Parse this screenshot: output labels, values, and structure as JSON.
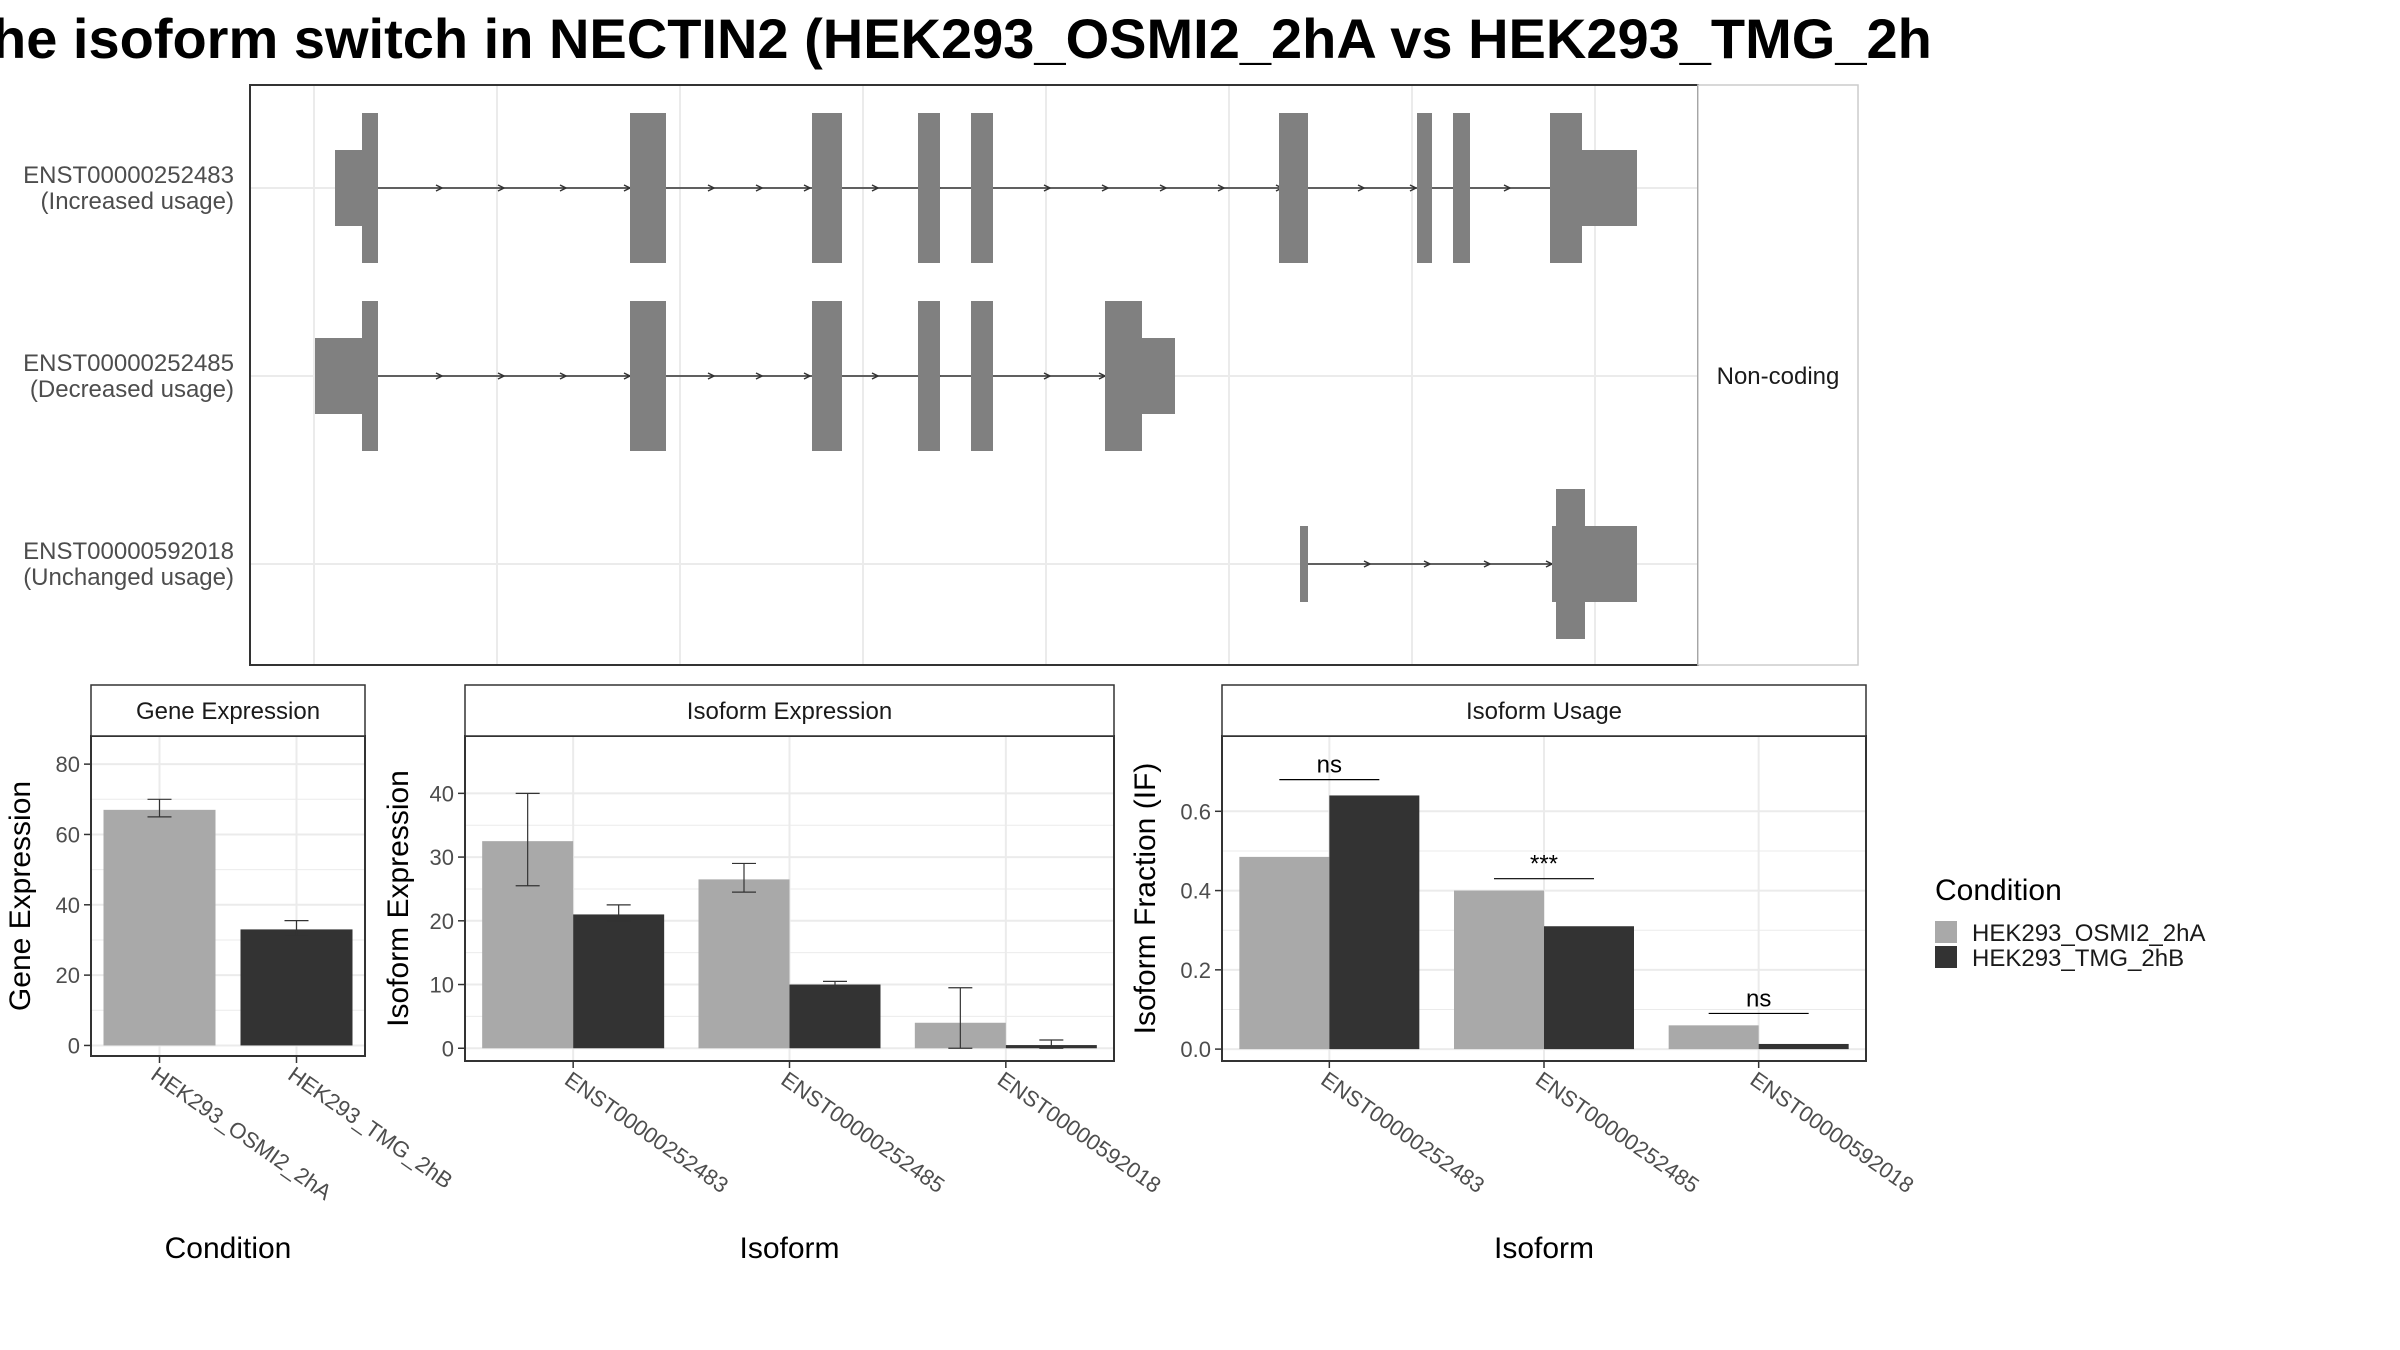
{
  "title": "he isoform switch in NECTIN2 (HEK293_OSMI2_2hA vs HEK293_TMG_2h",
  "colors": {
    "condition_a": "#a9a9a9",
    "condition_b": "#333333",
    "exon": "#808080",
    "grid": "#ebebeb"
  },
  "chart_data": [
    {
      "type": "gene-structure",
      "panel_label": "Non-coding",
      "isoforms": [
        {
          "id": "ENST00000252483",
          "usage": "(Increased usage)"
        },
        {
          "id": "ENST00000252485",
          "usage": "(Decreased usage)"
        },
        {
          "id": "ENST00000592018",
          "usage": "(Unchanged usage)"
        }
      ]
    },
    {
      "type": "bar",
      "title": "Gene Expression",
      "xlabel": "Condition",
      "ylabel": "Gene Expression",
      "ylim": [
        -3,
        88
      ],
      "yticks": [
        0,
        20,
        40,
        60,
        80
      ],
      "categories": [
        "HEK293_OSMI2_2hA",
        "HEK293_TMG_2hB"
      ],
      "values": [
        67,
        33
      ],
      "error_low": [
        65,
        31
      ],
      "error_high": [
        70,
        35.5
      ]
    },
    {
      "type": "bar",
      "title": "Isoform Expression",
      "xlabel": "Isoform",
      "ylabel": "Isoform Expression",
      "ylim": [
        -2,
        49
      ],
      "yticks": [
        0,
        10,
        20,
        30,
        40
      ],
      "categories": [
        "ENST00000252483",
        "ENST00000252485",
        "ENST00000592018"
      ],
      "series": [
        {
          "name": "HEK293_OSMI2_2hA",
          "values": [
            32.5,
            26.5,
            4
          ],
          "error_low": [
            25.5,
            24.5,
            0
          ],
          "error_high": [
            40,
            29,
            9.5
          ]
        },
        {
          "name": "HEK293_TMG_2hB",
          "values": [
            21,
            10,
            0.5
          ],
          "error_low": [
            20,
            9.5,
            0
          ],
          "error_high": [
            22.5,
            10.5,
            1.3
          ]
        }
      ]
    },
    {
      "type": "bar",
      "title": "Isoform Usage",
      "xlabel": "Isoform",
      "ylabel": "Isoform Fraction (IF)",
      "ylim": [
        -0.03,
        0.79
      ],
      "yticks": [
        "0.0",
        "0.2",
        "0.4",
        "0.6"
      ],
      "categories": [
        "ENST00000252483",
        "ENST00000252485",
        "ENST00000592018"
      ],
      "series": [
        {
          "name": "HEK293_OSMI2_2hA",
          "values": [
            0.485,
            0.4,
            0.06
          ]
        },
        {
          "name": "HEK293_TMG_2hB",
          "values": [
            0.64,
            0.31,
            0.013
          ]
        }
      ],
      "significance": [
        "ns",
        "***",
        "ns"
      ]
    }
  ],
  "legend": {
    "title": "Condition",
    "items": [
      "HEK293_OSMI2_2hA",
      "HEK293_TMG_2hB"
    ]
  }
}
